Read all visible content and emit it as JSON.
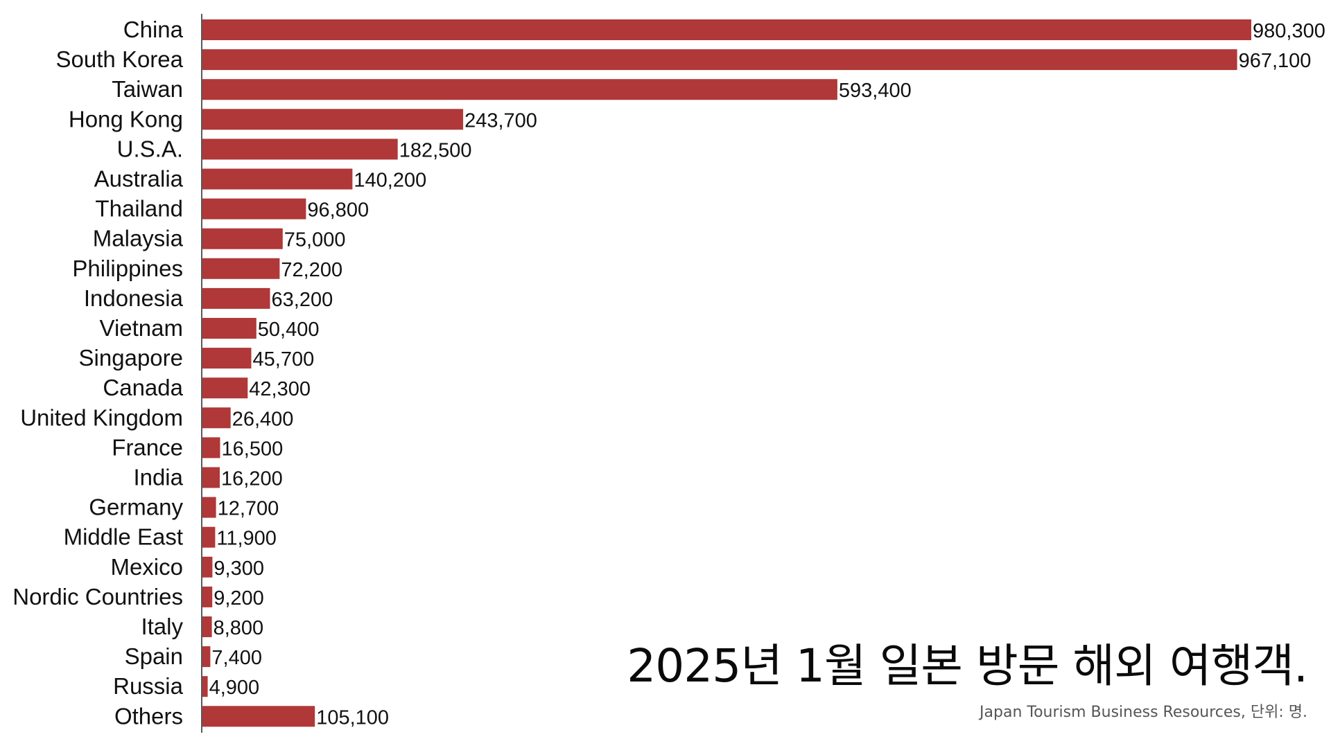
{
  "chart_data": {
    "type": "bar",
    "orientation": "horizontal",
    "title": "2025년 1월 일본 방문 해외 여행객.",
    "source": "Japan Tourism Business Resources, 단위: 명.",
    "xlabel": "",
    "ylabel": "",
    "xlim": [
      0,
      980300
    ],
    "grid": false,
    "bar_color": "#b03838",
    "categories": [
      "China",
      "South Korea",
      "Taiwan",
      "Hong Kong",
      "U.S.A.",
      "Australia",
      "Thailand",
      "Malaysia",
      "Philippines",
      "Indonesia",
      "Vietnam",
      "Singapore",
      "Canada",
      "United Kingdom",
      "France",
      "India",
      "Germany",
      "Middle East",
      "Mexico",
      "Nordic Countries",
      "Italy",
      "Spain",
      "Russia",
      "Others"
    ],
    "values": [
      980300,
      967100,
      593400,
      243700,
      182500,
      140200,
      96800,
      75000,
      72200,
      63200,
      50400,
      45700,
      42300,
      26400,
      16500,
      16200,
      12700,
      11900,
      9300,
      9200,
      8800,
      7400,
      4900,
      105100
    ],
    "value_labels": [
      "980,300",
      "967,100",
      "593,400",
      "243,700",
      "182,500",
      "140,200",
      "96,800",
      "75,000",
      "72,200",
      "63,200",
      "50,400",
      "45,700",
      "42,300",
      "26,400",
      "16,500",
      "16,200",
      "12,700",
      "11,900",
      "9,300",
      "9,200",
      "8,800",
      "7,400",
      "4,900",
      "105,100"
    ]
  }
}
